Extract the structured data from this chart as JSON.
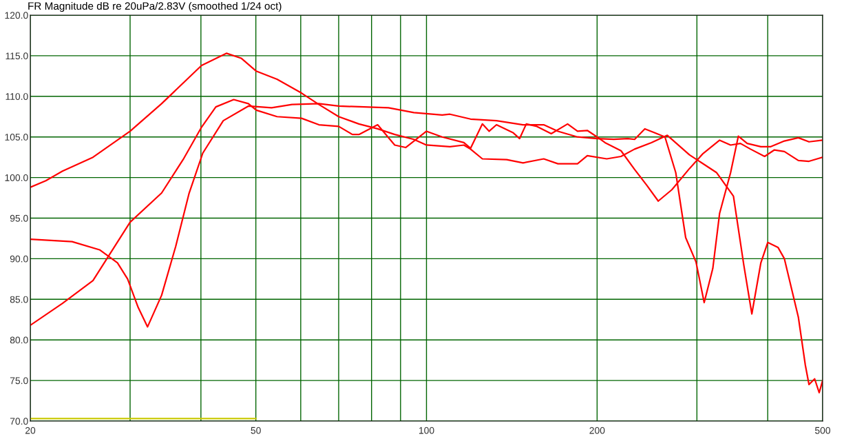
{
  "chart_data": {
    "type": "line",
    "title": "FR Magnitude dB re 20uPa/2.83V (smoothed 1/24 oct)",
    "log": "x",
    "grid": true,
    "marker": "none",
    "line_style": "solid",
    "xlim": [
      20,
      500
    ],
    "ylim": [
      70,
      120
    ],
    "xticks": [
      20,
      {
        "value": 30,
        "label": null
      },
      {
        "value": 40,
        "label": null
      },
      50,
      {
        "value": 60,
        "label": null
      },
      {
        "value": 70,
        "label": null
      },
      {
        "value": 80,
        "label": null
      },
      {
        "value": 90,
        "label": null
      },
      100,
      200,
      {
        "value": 300,
        "label": null
      },
      {
        "value": 400,
        "label": null
      },
      500
    ],
    "yticks": [
      {
        "value": 70,
        "label": "70.0"
      },
      {
        "value": 75,
        "label": "75.0"
      },
      {
        "value": 80,
        "label": "80.0"
      },
      {
        "value": 85,
        "label": "85.0"
      },
      {
        "value": 90,
        "label": "90.0"
      },
      {
        "value": 95,
        "label": "95.0"
      },
      {
        "value": 100,
        "label": "100.0"
      },
      {
        "value": 105,
        "label": "105.0"
      },
      {
        "value": 110,
        "label": "110.0"
      },
      {
        "value": 115,
        "label": "115.0"
      },
      {
        "value": 120,
        "label": "120.0"
      }
    ],
    "series": [
      {
        "color": "#ff0000",
        "x": [
          20,
          21.3,
          22.8,
          25.8,
          30,
          34.1,
          40.1,
          44.4,
          47.1,
          50.1,
          54.5,
          60.2,
          64.6,
          70,
          76,
          82,
          87.9,
          95,
          100,
          110,
          116.4,
          119.6,
          125.5,
          138.5,
          148,
          161,
          170.6,
          184.7,
          192.2,
          208,
          220.4,
          232.9,
          249.4,
          266,
          291,
          325,
          348,
          363,
          375,
          389,
          400,
          417,
          428,
          453,
          466,
          473,
          484,
          493,
          500
        ],
        "values": [
          98.8,
          99.6,
          100.8,
          102.5,
          105.7,
          109.1,
          113.8,
          115.3,
          114.7,
          113.1,
          112.1,
          110.4,
          109.0,
          107.5,
          106.6,
          106.0,
          105.3,
          104.7,
          104.0,
          103.8,
          104.0,
          103.5,
          102.3,
          102.2,
          101.8,
          102.3,
          101.7,
          101.7,
          102.7,
          102.3,
          102.6,
          103.5,
          104.3,
          105.2,
          102.8,
          100.6,
          97.7,
          89.2,
          83.2,
          89.5,
          92.0,
          91.4,
          90.0,
          82.8,
          76.9,
          74.5,
          75.2,
          73.5,
          75.0
        ]
      },
      {
        "color": "#ff0000",
        "x": [
          20,
          22.8,
          25.8,
          30,
          34.1,
          37.2,
          40.1,
          42.5,
          45.7,
          48.5,
          50.1,
          54.5,
          60.2,
          64.6,
          70,
          74,
          76,
          82,
          87.9,
          91.9,
          100,
          106.6,
          116.4,
          119.6,
          125.5,
          129,
          132.9,
          142.3,
          146,
          150,
          156.6,
          166,
          177.4,
          184.7,
          192.2,
          200,
          206.5,
          220.4,
          232.9,
          245,
          256.4,
          271,
          291,
          307,
          329,
          344,
          358,
          373,
          395,
          411,
          428,
          453,
          473,
          500
        ],
        "values": [
          81.8,
          84.5,
          87.3,
          94.5,
          98.1,
          102.2,
          106.2,
          108.7,
          109.6,
          109.1,
          108.3,
          107.5,
          107.3,
          106.5,
          106.3,
          105.3,
          105.3,
          106.5,
          104.0,
          103.7,
          105.7,
          105.0,
          104.3,
          103.6,
          106.6,
          105.7,
          106.5,
          105.5,
          104.8,
          106.6,
          106.3,
          105.4,
          106.6,
          105.7,
          105.8,
          105.0,
          104.3,
          103.3,
          101.0,
          99.0,
          97.1,
          98.5,
          101.1,
          102.9,
          104.6,
          104.0,
          104.2,
          103.5,
          102.6,
          103.4,
          103.2,
          102.1,
          102.0,
          102.5
        ]
      },
      {
        "color": "#ff0000",
        "x": [
          20,
          23.7,
          26.5,
          28.5,
          29.7,
          31,
          32.2,
          34.1,
          36.1,
          38.1,
          40.3,
          43.8,
          48.5,
          53.3,
          57.9,
          64.6,
          70,
          85.7,
          95,
          106.6,
          110,
          119.6,
          132.9,
          148,
          161,
          170.6,
          184.7,
          200,
          214,
          226.6,
          232.9,
          242.8,
          252.9,
          263.5,
          275.3,
          286.6,
          298.9,
          309,
          320,
          329,
          344,
          355,
          368,
          389,
          405,
          428,
          453,
          473,
          500
        ],
        "values": [
          92.4,
          92.1,
          91.1,
          89.5,
          87.5,
          84.0,
          81.6,
          85.5,
          91.5,
          98.0,
          103.0,
          107.0,
          108.8,
          108.6,
          109.0,
          109.1,
          108.8,
          108.6,
          108.0,
          107.7,
          107.8,
          107.2,
          107.0,
          106.5,
          106.5,
          105.7,
          105.0,
          104.8,
          104.7,
          104.8,
          104.7,
          106.0,
          105.5,
          105.0,
          100.6,
          92.6,
          89.6,
          84.6,
          88.8,
          95.6,
          100.6,
          105.1,
          104.2,
          103.8,
          103.8,
          104.5,
          104.9,
          104.4,
          104.6
        ]
      },
      {
        "color": "#c8c800",
        "x": [
          20,
          50
        ],
        "values": [
          70.3,
          70.3
        ]
      }
    ]
  }
}
